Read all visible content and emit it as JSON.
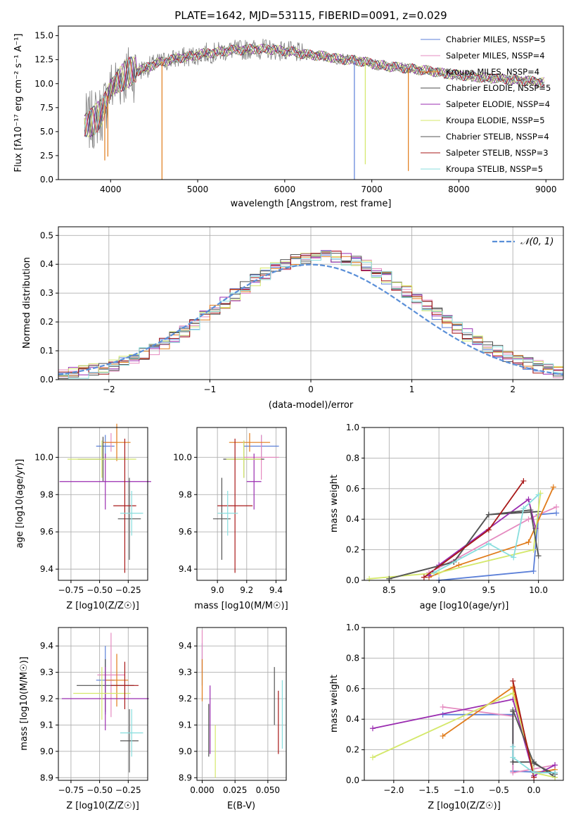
{
  "colors": {
    "pal": [
      "#5b7fd8",
      "#e58bc0",
      "#e07b1a",
      "#4d4d4d",
      "#9a2cb0",
      "#d4e86a",
      "#555555",
      "#a81818",
      "#88dede"
    ],
    "gray": "#7f7f7f",
    "normal": "#5a8fd8"
  },
  "chart_data": [
    {
      "id": "spectrum",
      "type": "line",
      "title": "PLATE=1642, MJD=53115, FIBERID=0091, z=0.029",
      "xlabel": "wavelength [Angstrom, rest frame]",
      "ylabel": "Flux [fλ10⁻¹⁷ erg cm⁻² s⁻¹ A⁻¹]",
      "xlim": [
        3400,
        9200
      ],
      "ylim": [
        0,
        16
      ],
      "xticks": [
        4000,
        5000,
        6000,
        7000,
        8000,
        9000
      ],
      "yticks": [
        0.0,
        2.5,
        5.0,
        7.5,
        10.0,
        12.5,
        15.0
      ],
      "grid": false,
      "legend_position": "upper right",
      "series": [
        {
          "name": "Chabrier MILES, NSSP=5"
        },
        {
          "name": "Salpeter MILES, NSSP=4"
        },
        {
          "name": "Kroupa MILES, NSSP=4"
        },
        {
          "name": "Chabrier ELODIE, NSSP=5"
        },
        {
          "name": "Salpeter ELODIE, NSSP=4"
        },
        {
          "name": "Kroupa ELODIE, NSSP=5"
        },
        {
          "name": "Chabrier STELIB, NSSP=4"
        },
        {
          "name": "Salpeter STELIB, NSSP=3"
        },
        {
          "name": "Kroupa STELIB, NSSP=5"
        }
      ],
      "continuum": {
        "x": [
          3700,
          3800,
          3900,
          4000,
          4100,
          4200,
          4300,
          4400,
          4500,
          4600,
          4700,
          4800,
          4900,
          5000,
          5100,
          5200,
          5300,
          5400,
          5500,
          5600,
          5700,
          5800,
          5900,
          6000,
          6100,
          6200,
          6300,
          6400,
          6500,
          6600,
          6700,
          6800,
          6900,
          7000,
          7100,
          7200,
          7300,
          7400,
          7500,
          7600,
          7700,
          7800,
          7900,
          8000,
          8100,
          8200,
          8300,
          8400,
          8500,
          8600,
          8700,
          8800,
          8900,
          9000
        ],
        "y": [
          5.8,
          6.2,
          7.0,
          9.5,
          10.4,
          11.0,
          11.3,
          11.6,
          12.0,
          12.3,
          12.5,
          12.7,
          12.8,
          13.0,
          13.2,
          13.2,
          13.4,
          13.5,
          13.5,
          13.6,
          13.6,
          13.6,
          13.5,
          13.4,
          13.3,
          13.1,
          13.0,
          12.9,
          12.8,
          12.6,
          12.5,
          12.4,
          12.3,
          12.1,
          11.9,
          11.8,
          11.7,
          11.6,
          11.5,
          11.4,
          11.3,
          11.1,
          11.0,
          10.9,
          10.8,
          10.7,
          10.6,
          10.6,
          10.5,
          10.4,
          10.3,
          10.3,
          10.2,
          10.1
        ]
      },
      "dips": [
        {
          "x": 3933,
          "y": 2.0
        },
        {
          "x": 3968,
          "y": 2.4
        },
        {
          "x": 4590,
          "y": 0.0
        },
        {
          "x": 6800,
          "y": 0.0
        },
        {
          "x": 6925,
          "y": 1.6
        },
        {
          "x": 7420,
          "y": 0.9
        }
      ]
    },
    {
      "id": "residuals",
      "type": "histogram",
      "xlabel": "(data-model)/error",
      "ylabel": "Normed distribution",
      "xlim": [
        -2.5,
        2.5
      ],
      "ylim": [
        0,
        0.53
      ],
      "xticks": [
        -2,
        -1,
        0,
        1,
        2
      ],
      "yticks": [
        0.0,
        0.1,
        0.2,
        0.3,
        0.4,
        0.5
      ],
      "grid": true,
      "legend_position": "upper right",
      "legend": [
        "𝒩(0, 1)"
      ],
      "bin_width": 0.1,
      "reference_curve": "normal(0,1) density, dashed"
    },
    {
      "id": "age-vs-Z",
      "type": "scatter",
      "xlabel": "Z [log10(Z/Z☉)]",
      "ylabel": "age  [log10(age/yr)]",
      "xlim": [
        -0.86,
        -0.08
      ],
      "ylim": [
        9.34,
        10.16
      ],
      "xticks": [
        -0.75,
        -0.5,
        -0.25
      ],
      "yticks": [
        9.4,
        9.6,
        9.8,
        10.0
      ],
      "grid": true,
      "points": [
        {
          "x": -0.45,
          "y": 10.06,
          "xerr": 0.08,
          "yerr": 0.06
        },
        {
          "x": -0.4,
          "y": 10.08,
          "xerr": 0.05,
          "yerr": 0.05
        },
        {
          "x": -0.35,
          "y": 10.08,
          "xerr": 0.12,
          "yerr": 0.1
        },
        {
          "x": -0.47,
          "y": 9.99,
          "xerr": 0.22,
          "yerr": 0.12
        },
        {
          "x": -0.45,
          "y": 9.87,
          "xerr": 0.4,
          "yerr": 0.15
        },
        {
          "x": -0.48,
          "y": 9.99,
          "xerr": 0.3,
          "yerr": 0.1
        },
        {
          "x": -0.24,
          "y": 9.67,
          "xerr": 0.1,
          "yerr": 0.22
        },
        {
          "x": -0.28,
          "y": 9.74,
          "xerr": 0.1,
          "yerr": 0.36
        },
        {
          "x": -0.22,
          "y": 9.7,
          "xerr": 0.1,
          "yerr": 0.12
        }
      ]
    },
    {
      "id": "age-vs-mass",
      "type": "scatter",
      "xlabel": "mass [log10(M/M☉)]",
      "ylabel": "",
      "xlim": [
        8.86,
        9.47
      ],
      "ylim": [
        9.34,
        10.16
      ],
      "xticks": [
        9.0,
        9.2,
        9.4
      ],
      "yticks": [
        9.4,
        9.6,
        9.8,
        10.0
      ],
      "grid": true,
      "points": [
        {
          "x": 9.3,
          "y": 10.06,
          "xerr": 0.12,
          "yerr": 0.06
        },
        {
          "x": 9.3,
          "y": 10.0,
          "xerr": 0.12,
          "yerr": 0.12
        },
        {
          "x": 9.22,
          "y": 10.08,
          "xerr": 0.14,
          "yerr": 0.05
        },
        {
          "x": 9.18,
          "y": 9.99,
          "xerr": 0.14,
          "yerr": 0.1
        },
        {
          "x": 9.25,
          "y": 9.87,
          "xerr": 0.05,
          "yerr": 0.15
        },
        {
          "x": 9.18,
          "y": 9.99,
          "xerr": 0.12,
          "yerr": 0.1
        },
        {
          "x": 9.03,
          "y": 9.67,
          "xerr": 0.06,
          "yerr": 0.22
        },
        {
          "x": 9.12,
          "y": 9.74,
          "xerr": 0.12,
          "yerr": 0.36
        },
        {
          "x": 9.07,
          "y": 9.7,
          "xerr": 0.07,
          "yerr": 0.12
        }
      ]
    },
    {
      "id": "weight-vs-age",
      "type": "line",
      "xlabel": "age  [log10(age/yr)]",
      "ylabel": "mass weight",
      "xlim": [
        8.25,
        10.25
      ],
      "ylim": [
        0,
        1.0
      ],
      "xticks": [
        8.5,
        9.0,
        9.5,
        10.0
      ],
      "yticks": [
        0.0,
        0.2,
        0.4,
        0.6,
        0.8,
        1.0
      ],
      "grid": true,
      "series": [
        {
          "x": [
            9.0,
            9.95,
            10.0,
            10.18
          ],
          "y": [
            0.0,
            0.06,
            0.43,
            0.44
          ]
        },
        {
          "x": [
            8.9,
            9.2,
            9.9,
            10.18
          ],
          "y": [
            0.05,
            0.15,
            0.4,
            0.48
          ]
        },
        {
          "x": [
            8.9,
            9.2,
            9.9,
            10.15
          ],
          "y": [
            0.02,
            0.1,
            0.25,
            0.61
          ]
        },
        {
          "x": [
            8.5,
            9.15,
            9.5,
            10.0
          ],
          "y": [
            0.01,
            0.12,
            0.43,
            0.45
          ]
        },
        {
          "x": [
            8.9,
            9.0,
            9.9,
            9.97
          ],
          "y": [
            0.03,
            0.1,
            0.53,
            0.34
          ]
        },
        {
          "x": [
            8.3,
            9.0,
            9.95,
            10.02
          ],
          "y": [
            0.01,
            0.05,
            0.2,
            0.57
          ]
        },
        {
          "x": [
            8.5,
            9.15,
            9.5,
            9.92,
            10.0
          ],
          "y": [
            0.01,
            0.12,
            0.43,
            0.46,
            0.16
          ]
        },
        {
          "x": [
            8.85,
            9.5,
            9.85
          ],
          "y": [
            0.02,
            0.33,
            0.65
          ]
        },
        {
          "x": [
            8.95,
            9.5,
            9.75,
            9.85,
            10.0
          ],
          "y": [
            0.05,
            0.24,
            0.15,
            0.47,
            0.56
          ]
        }
      ]
    },
    {
      "id": "mass-vs-Z",
      "type": "scatter",
      "xlabel": "Z [log10(Z/Z☉)]",
      "ylabel": "mass [log10(M/M☉)]",
      "xlim": [
        -0.86,
        -0.08
      ],
      "ylim": [
        8.89,
        9.47
      ],
      "xticks": [
        -0.75,
        -0.5,
        -0.25
      ],
      "yticks": [
        8.9,
        9.0,
        9.1,
        9.2,
        9.3,
        9.4
      ],
      "grid": true,
      "points": [
        {
          "x": -0.45,
          "y": 9.27,
          "xerr": 0.08,
          "yerr": 0.13
        },
        {
          "x": -0.4,
          "y": 9.29,
          "xerr": 0.12,
          "yerr": 0.16
        },
        {
          "x": -0.35,
          "y": 9.27,
          "xerr": 0.1,
          "yerr": 0.1
        },
        {
          "x": -0.45,
          "y": 9.25,
          "xerr": 0.25,
          "yerr": 0.1
        },
        {
          "x": -0.45,
          "y": 9.2,
          "xerr": 0.38,
          "yerr": 0.12
        },
        {
          "x": -0.48,
          "y": 9.22,
          "xerr": 0.25,
          "yerr": 0.1
        },
        {
          "x": -0.24,
          "y": 9.04,
          "xerr": 0.08,
          "yerr": 0.12
        },
        {
          "x": -0.28,
          "y": 9.25,
          "xerr": 0.12,
          "yerr": 0.09
        },
        {
          "x": -0.22,
          "y": 9.07,
          "xerr": 0.1,
          "yerr": 0.09
        }
      ]
    },
    {
      "id": "mass-vs-ebv",
      "type": "scatter",
      "xlabel": "E(B-V)",
      "ylabel": "",
      "xlim": [
        -0.004,
        0.064
      ],
      "ylim": [
        8.89,
        9.47
      ],
      "xticks": [
        0.0,
        0.025,
        0.05
      ],
      "yticks": [
        8.9,
        9.0,
        9.1,
        9.2,
        9.3,
        9.4
      ],
      "grid": true,
      "points": [
        {
          "x": 0.0,
          "y": 9.33,
          "xerr": 0,
          "yerr": 0.08
        },
        {
          "x": 0.0,
          "y": 9.38,
          "xerr": 0,
          "yerr": 0.08
        },
        {
          "x": 0.0,
          "y": 9.27,
          "xerr": 0,
          "yerr": 0.08
        },
        {
          "x": 0.005,
          "y": 9.08,
          "xerr": 0,
          "yerr": 0.1
        },
        {
          "x": 0.006,
          "y": 9.12,
          "xerr": 0,
          "yerr": 0.13
        },
        {
          "x": 0.01,
          "y": 9.0,
          "xerr": 0,
          "yerr": 0.1
        },
        {
          "x": 0.055,
          "y": 9.21,
          "xerr": 0,
          "yerr": 0.11
        },
        {
          "x": 0.058,
          "y": 9.11,
          "xerr": 0,
          "yerr": 0.12
        },
        {
          "x": 0.061,
          "y": 9.14,
          "xerr": 0,
          "yerr": 0.13
        }
      ]
    },
    {
      "id": "weight-vs-Z",
      "type": "line",
      "xlabel": "Z [log10(Z/Z☉)]",
      "ylabel": "mass weight",
      "xlim": [
        -2.42,
        0.42
      ],
      "ylim": [
        0,
        1.0
      ],
      "xticks": [
        -2.0,
        -1.5,
        -1.0,
        -0.5,
        0.0
      ],
      "yticks": [
        0.0,
        0.2,
        0.4,
        0.6,
        0.8,
        1.0
      ],
      "grid": true,
      "series": [
        {
          "x": [
            -1.3,
            -0.3,
            -0.3,
            0.3
          ],
          "y": [
            0.43,
            0.43,
            0.06,
            0.05
          ]
        },
        {
          "x": [
            -1.3,
            -0.3,
            -0.3,
            0.3
          ],
          "y": [
            0.48,
            0.42,
            0.05,
            0.1
          ]
        },
        {
          "x": [
            -1.3,
            -0.3,
            0.0,
            0.3
          ],
          "y": [
            0.29,
            0.61,
            0.05,
            0.07
          ]
        },
        {
          "x": [
            -0.3,
            -0.3,
            0.0,
            0.3
          ],
          "y": [
            0.45,
            0.12,
            0.12,
            0.02
          ]
        },
        {
          "x": [
            -2.3,
            -0.3,
            0.0,
            0.3
          ],
          "y": [
            0.34,
            0.53,
            0.03,
            0.1
          ]
        },
        {
          "x": [
            -2.3,
            -0.3,
            0.0,
            0.3
          ],
          "y": [
            0.15,
            0.57,
            0.05,
            0.02
          ]
        },
        {
          "x": [
            -0.3,
            0.0,
            0.3
          ],
          "y": [
            0.46,
            0.11,
            0.04
          ]
        },
        {
          "x": [
            -0.3,
            0.0
          ],
          "y": [
            0.65,
            0.02
          ]
        },
        {
          "x": [
            -0.3,
            -0.3,
            0.0,
            0.3
          ],
          "y": [
            0.22,
            0.15,
            0.05,
            0.05
          ]
        }
      ]
    }
  ]
}
